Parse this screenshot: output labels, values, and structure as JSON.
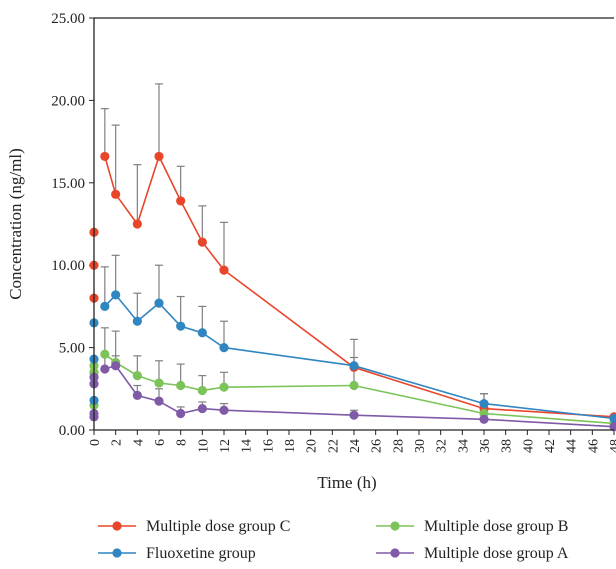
{
  "chart_data": {
    "type": "line",
    "xlabel": "Time (h)",
    "ylabel": "Concentration (ng/ml)",
    "xlim": [
      0,
      48
    ],
    "ylim": [
      0,
      25
    ],
    "x_ticks": [
      "0",
      "2",
      "4",
      "6",
      "8",
      "10",
      "12",
      "14",
      "16",
      "18",
      "20",
      "22",
      "24",
      "26",
      "28",
      "30",
      "32",
      "34",
      "36",
      "38",
      "40",
      "42",
      "44",
      "46",
      "48"
    ],
    "y_ticks": [
      "0.00",
      "5.00",
      "10.00",
      "15.00",
      "20.00",
      "25.00"
    ],
    "grid": false,
    "legend_position": "bottom",
    "series": [
      {
        "name": "Multiple dose group C",
        "color": "#e8462a",
        "points": [
          {
            "x": 0,
            "y": 3.5
          },
          {
            "x": 0,
            "y": 8.0
          },
          {
            "x": 0,
            "y": 10.0
          },
          {
            "x": 0,
            "y": 12.0
          },
          {
            "x": 1,
            "y": 16.6,
            "err": 2.9
          },
          {
            "x": 2,
            "y": 14.3,
            "err": 4.2
          },
          {
            "x": 4,
            "y": 12.5,
            "err": 3.6
          },
          {
            "x": 6,
            "y": 16.6,
            "err": 4.4
          },
          {
            "x": 8,
            "y": 13.9,
            "err": 2.1
          },
          {
            "x": 10,
            "y": 11.4,
            "err": 2.2
          },
          {
            "x": 12,
            "y": 9.7,
            "err": 2.9
          },
          {
            "x": 24,
            "y": 3.8,
            "err": 0.6
          },
          {
            "x": 36,
            "y": 1.3,
            "err": 0.9
          },
          {
            "x": 48,
            "y": 0.8
          }
        ]
      },
      {
        "name": "Multiple dose group B",
        "color": "#7cc35a",
        "points": [
          {
            "x": 0,
            "y": 1.5
          },
          {
            "x": 0,
            "y": 3.5
          },
          {
            "x": 0,
            "y": 3.9
          },
          {
            "x": 1,
            "y": 4.6,
            "err": 1.6
          },
          {
            "x": 2,
            "y": 4.1,
            "err": 1.9
          },
          {
            "x": 4,
            "y": 3.3,
            "err": 1.2
          },
          {
            "x": 6,
            "y": 2.85,
            "err": 1.35
          },
          {
            "x": 8,
            "y": 2.7,
            "err": 1.3
          },
          {
            "x": 10,
            "y": 2.4,
            "err": 0.9
          },
          {
            "x": 12,
            "y": 2.6,
            "err": 0.9
          },
          {
            "x": 24,
            "y": 2.7,
            "err": 1.3
          },
          {
            "x": 36,
            "y": 1.0
          },
          {
            "x": 48,
            "y": 0.4
          }
        ]
      },
      {
        "name": "Fluoxetine group",
        "color": "#2f86c0",
        "points": [
          {
            "x": 0,
            "y": 1.8
          },
          {
            "x": 0,
            "y": 4.3
          },
          {
            "x": 0,
            "y": 6.5
          },
          {
            "x": 1,
            "y": 7.5,
            "err": 2.4
          },
          {
            "x": 2,
            "y": 8.2,
            "err": 2.4
          },
          {
            "x": 4,
            "y": 6.6,
            "err": 1.7
          },
          {
            "x": 6,
            "y": 7.7,
            "err": 2.3
          },
          {
            "x": 8,
            "y": 6.3,
            "err": 1.8
          },
          {
            "x": 10,
            "y": 5.9,
            "err": 1.6
          },
          {
            "x": 12,
            "y": 5.0,
            "err": 1.6
          },
          {
            "x": 24,
            "y": 3.9,
            "err": 1.6
          },
          {
            "x": 36,
            "y": 1.6,
            "err": 0.6
          },
          {
            "x": 48,
            "y": 0.7
          }
        ]
      },
      {
        "name": "Multiple dose group A",
        "color": "#7f5aa6",
        "points": [
          {
            "x": 0,
            "y": 0.8
          },
          {
            "x": 0,
            "y": 1.0
          },
          {
            "x": 0,
            "y": 2.8
          },
          {
            "x": 0,
            "y": 3.2
          },
          {
            "x": 1,
            "y": 3.7,
            "err": 0.8
          },
          {
            "x": 2,
            "y": 3.9,
            "err": 0.6
          },
          {
            "x": 4,
            "y": 2.1,
            "err": 0.6
          },
          {
            "x": 6,
            "y": 1.75,
            "err": 0.75
          },
          {
            "x": 8,
            "y": 1.0,
            "err": 0.4
          },
          {
            "x": 10,
            "y": 1.3,
            "err": 0.4
          },
          {
            "x": 12,
            "y": 1.2,
            "err": 0.4
          },
          {
            "x": 24,
            "y": 0.9,
            "err": 0.3
          },
          {
            "x": 36,
            "y": 0.65
          },
          {
            "x": 48,
            "y": 0.2
          }
        ]
      }
    ],
    "legend": [
      {
        "label": "Multiple dose group C",
        "color": "#e8462a"
      },
      {
        "label": "Multiple dose group B",
        "color": "#7cc35a"
      },
      {
        "label": "Fluoxetine group",
        "color": "#2f86c0"
      },
      {
        "label": "Multiple dose group A",
        "color": "#7f5aa6"
      }
    ]
  }
}
